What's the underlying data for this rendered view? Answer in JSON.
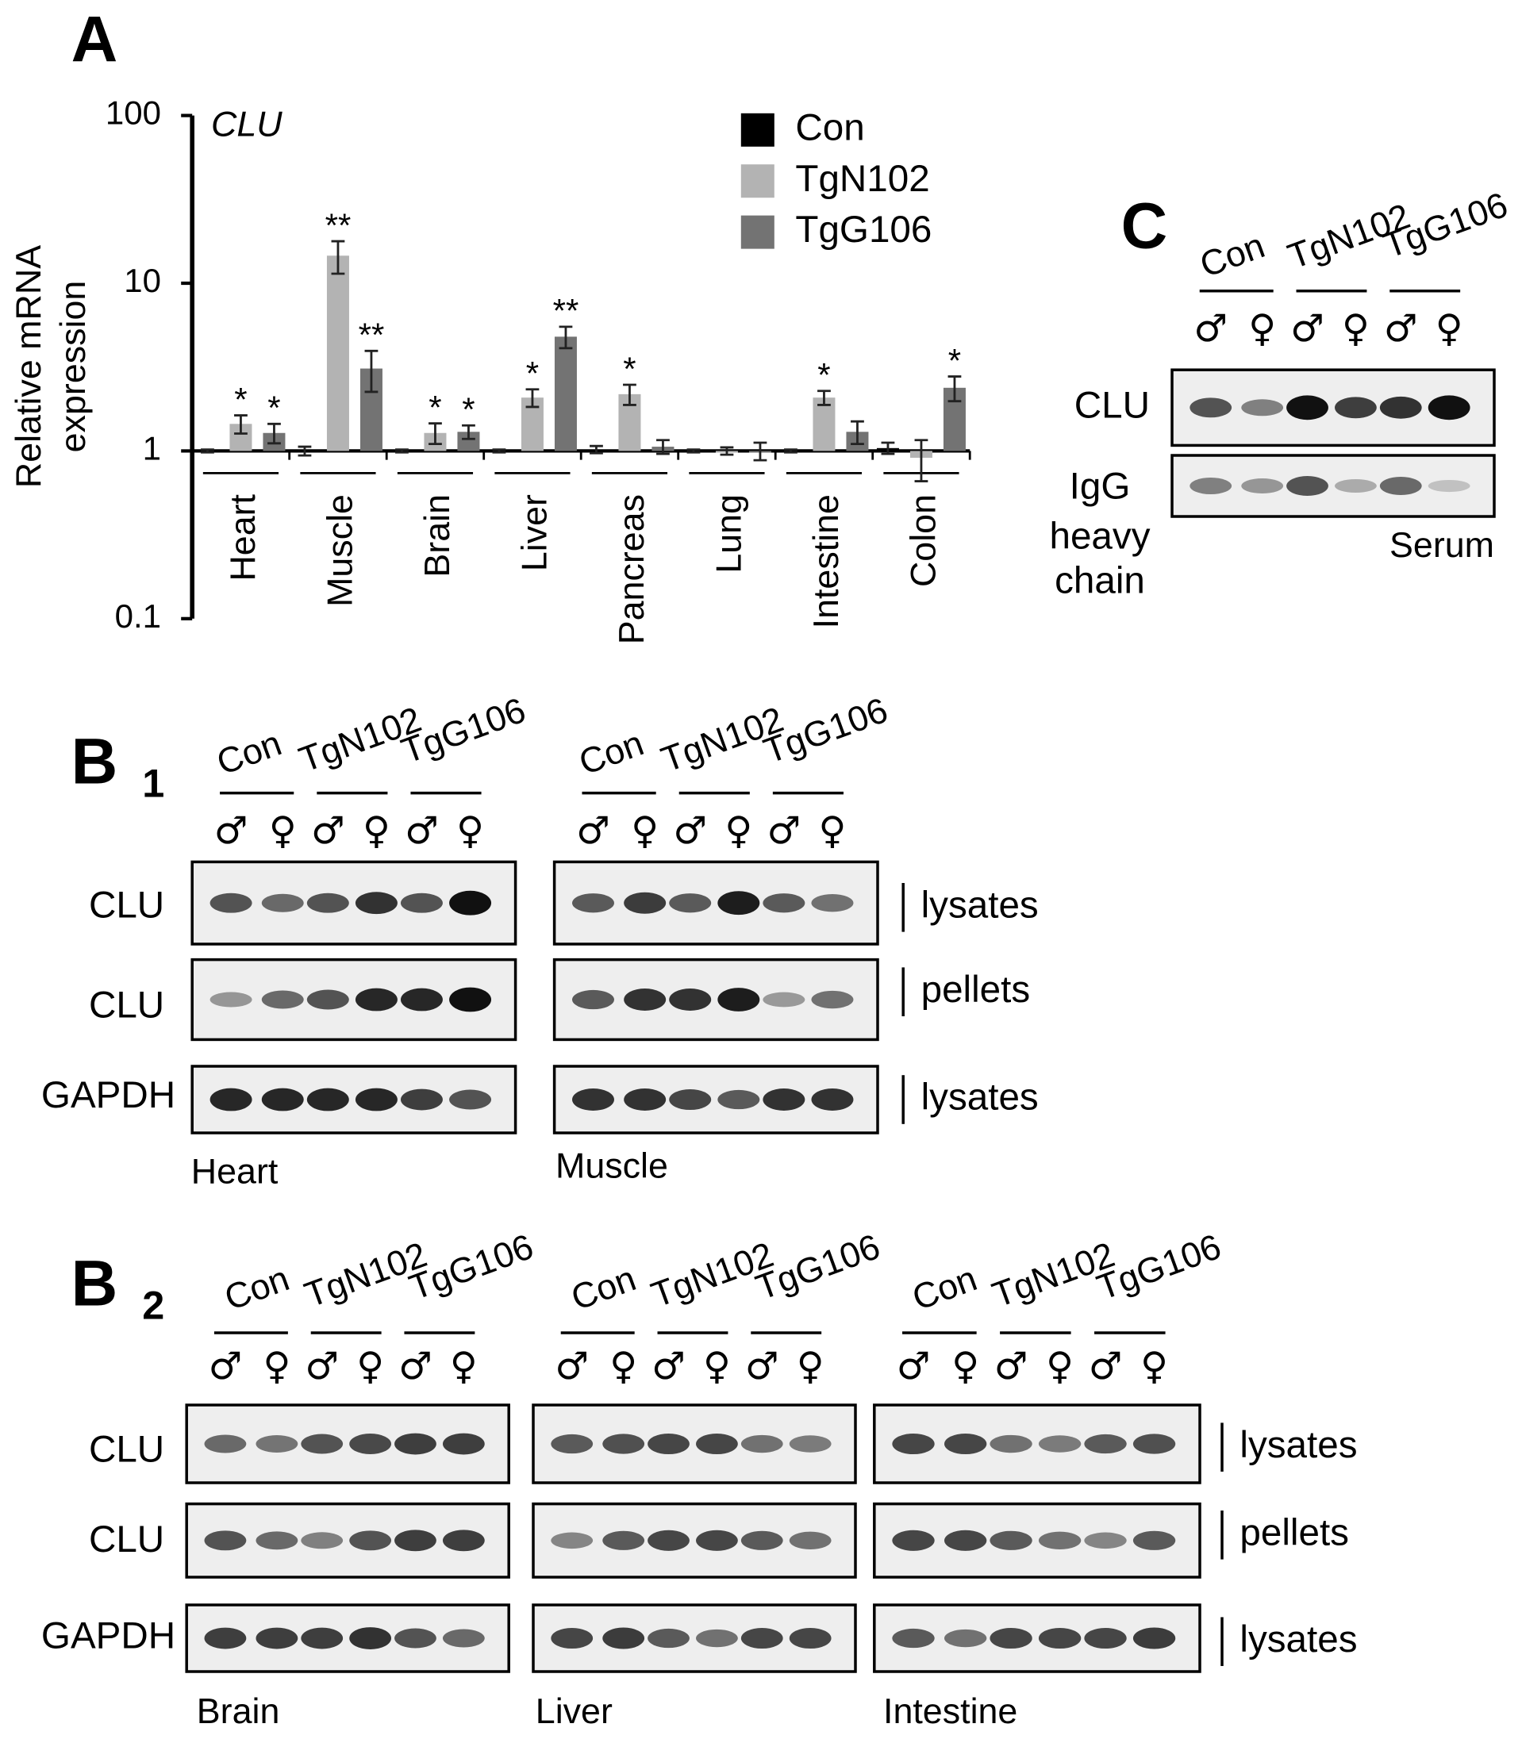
{
  "chart_data": {
    "type": "bar",
    "panel_label": "A",
    "title": "CLU",
    "y_label_lines": [
      "Relative mRNA",
      "expression"
    ],
    "categories": [
      "Heart",
      "Muscle",
      "Brain",
      "Liver",
      "Pancreas",
      "Lung",
      "Intestine",
      "Colon"
    ],
    "series": [
      {
        "name": "Con",
        "color": "#000000",
        "values": [
          1.0,
          1.0,
          1.0,
          1.0,
          1.02,
          1.0,
          1.0,
          1.04
        ],
        "errors": [
          0.02,
          0.06,
          0.02,
          0.02,
          0.05,
          0.02,
          0.02,
          0.08
        ]
      },
      {
        "name": "TgN102",
        "color": "#b3b3b3",
        "values": [
          1.45,
          14.6,
          1.28,
          2.08,
          2.18,
          1.0,
          2.08,
          0.91
        ],
        "errors": [
          0.18,
          3.2,
          0.18,
          0.25,
          0.3,
          0.05,
          0.2,
          0.25
        ],
        "stars": [
          "*",
          "**",
          "*",
          "*",
          "*",
          null,
          "*",
          null
        ]
      },
      {
        "name": "TgG106",
        "color": "#737373",
        "values": [
          1.28,
          3.1,
          1.3,
          4.8,
          1.06,
          1.0,
          1.3,
          2.38
        ],
        "errors": [
          0.17,
          0.85,
          0.12,
          0.7,
          0.1,
          0.12,
          0.2,
          0.4
        ],
        "stars": [
          "*",
          "**",
          "*",
          "**",
          null,
          null,
          null,
          "*"
        ]
      }
    ],
    "ylim": [
      0.1,
      100
    ],
    "yticks": [
      0.1,
      1,
      10,
      100
    ],
    "log_scale": true,
    "legend": "top-right"
  },
  "blot_panels": [
    {
      "label": "C",
      "groups": [
        "Con",
        "TgN102",
        "TgG106"
      ],
      "sexes": [
        "♂",
        "♀"
      ],
      "rows": [
        [
          "CLU"
        ],
        [
          "IgG",
          "heavy",
          "chain"
        ]
      ],
      "tissues": [
        "Serum"
      ]
    },
    {
      "label": "B",
      "subscript": "1",
      "groups": [
        "Con",
        "TgN102",
        "TgG106"
      ],
      "sexes": [
        "♂",
        "♀"
      ],
      "rows": [
        [
          "CLU"
        ],
        [
          "CLU"
        ],
        [
          "GAPDH"
        ]
      ],
      "side_labels": [
        "lysates",
        "pellets",
        "lysates"
      ],
      "tissues": [
        "Heart",
        "Muscle"
      ]
    },
    {
      "label": "B",
      "subscript": "2",
      "groups": [
        "Con",
        "TgN102",
        "TgG106"
      ],
      "sexes": [
        "♂",
        "♀"
      ],
      "rows": [
        [
          "CLU"
        ],
        [
          "CLU"
        ],
        [
          "GAPDH"
        ]
      ],
      "side_labels": [
        "lysates",
        "pellets",
        "lysates"
      ],
      "tissues": [
        "Brain",
        "Liver",
        "Intestine"
      ]
    }
  ]
}
